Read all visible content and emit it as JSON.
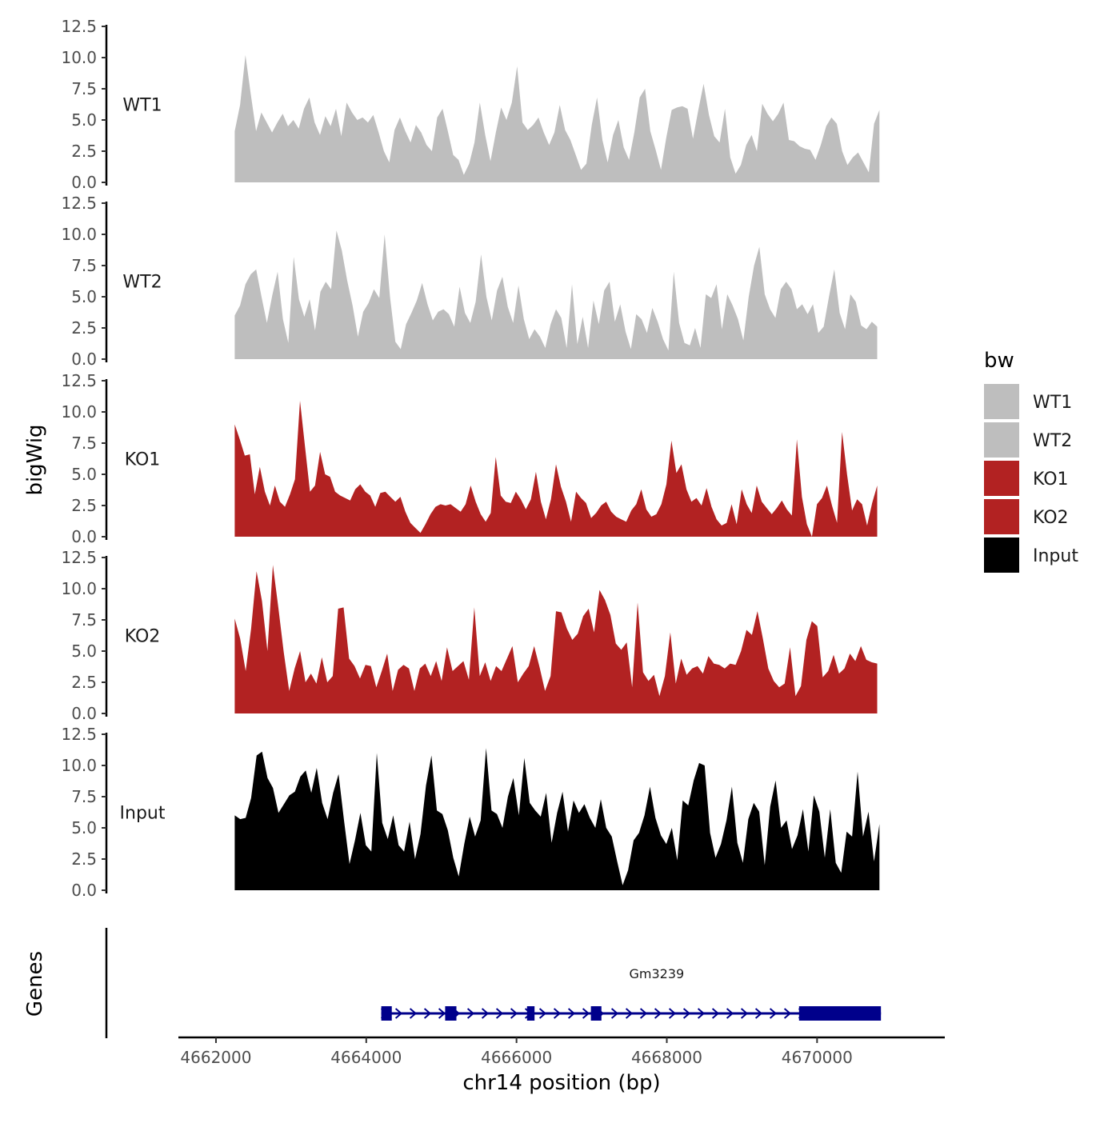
{
  "chart_data": {
    "type": "area",
    "y_axis_title": "bigWig",
    "x_axis_title": "chr14 position (bp)",
    "genes_axis_title": "Genes",
    "x_ticks": [
      4662000,
      4664000,
      4666000,
      4668000,
      4670000
    ],
    "x_tick_labels": [
      "4662000",
      "4664000",
      "4666000",
      "4668000",
      "4670000"
    ],
    "xlim": [
      4661500,
      4671700
    ],
    "ylim": [
      0,
      12.5
    ],
    "y_ticks": [
      0.0,
      2.5,
      5.0,
      7.5,
      10.0,
      12.5
    ],
    "y_tick_labels": [
      "0.0",
      "2.5",
      "5.0",
      "7.5",
      "10.0",
      "12.5"
    ],
    "legend": {
      "title": "bw",
      "position": "right",
      "entries": [
        {
          "label": "WT1",
          "color": "#bebebe"
        },
        {
          "label": "WT2",
          "color": "#bebebe"
        },
        {
          "label": "KO1",
          "color": "#b22222"
        },
        {
          "label": "KO2",
          "color": "#b22222"
        },
        {
          "label": "Input",
          "color": "#000000"
        }
      ]
    },
    "tracks": [
      {
        "name": "WT1",
        "color": "#bebebe",
        "x_range": [
          4662250,
          4670830
        ],
        "values": [
          4.1,
          6.2,
          10.2,
          7.1,
          4.1,
          5.6,
          4.8,
          4.0,
          4.8,
          5.5,
          4.5,
          5.0,
          4.3,
          5.9,
          6.8,
          4.8,
          3.8,
          5.3,
          4.5,
          5.9,
          3.7,
          6.4,
          5.6,
          5.0,
          5.2,
          4.8,
          5.4,
          4.0,
          2.5,
          1.6,
          4.2,
          5.2,
          4.1,
          3.2,
          4.6,
          4.0,
          3.0,
          2.5,
          5.2,
          5.9,
          4.1,
          2.2,
          1.8,
          0.6,
          1.5,
          3.2,
          6.4,
          3.8,
          1.7,
          4.0,
          6.0,
          5.0,
          6.4,
          9.3,
          4.8,
          4.2,
          4.6,
          5.2,
          4.0,
          3.0,
          4.0,
          6.2,
          4.2,
          3.4,
          2.2,
          1.0,
          1.5,
          4.6,
          6.8,
          3.4,
          1.6,
          3.8,
          5.0,
          2.8,
          1.8,
          4.0,
          6.8,
          7.5,
          4.1,
          2.6,
          1.0,
          3.6,
          5.8,
          6.0,
          6.1,
          5.9,
          3.5,
          5.8,
          7.9,
          5.4,
          3.7,
          3.2,
          5.9,
          2.0,
          0.7,
          1.4,
          3.0,
          3.8,
          2.5,
          6.3,
          5.5,
          4.9,
          5.5,
          6.4,
          3.4,
          3.3,
          2.9,
          2.7,
          2.6,
          1.8,
          3.0,
          4.5,
          5.2,
          4.7,
          2.5,
          1.4,
          2.0,
          2.4,
          1.6,
          0.8,
          4.7,
          5.8
        ]
      },
      {
        "name": "WT2",
        "color": "#bebebe",
        "x_range": [
          4662250,
          4670800
        ],
        "values": [
          3.5,
          4.3,
          6.0,
          6.8,
          7.2,
          5.0,
          2.9,
          5.1,
          7.0,
          3.2,
          1.3,
          8.2,
          4.8,
          3.4,
          4.8,
          2.3,
          5.4,
          6.2,
          5.6,
          10.3,
          8.7,
          6.3,
          4.3,
          1.8,
          3.8,
          4.5,
          5.6,
          4.9,
          10.0,
          5.0,
          1.4,
          0.8,
          2.8,
          3.7,
          4.7,
          6.1,
          4.4,
          3.1,
          3.8,
          4.0,
          3.6,
          2.6,
          5.8,
          3.7,
          2.9,
          4.6,
          8.4,
          5.0,
          3.1,
          5.5,
          6.6,
          4.2,
          2.9,
          5.9,
          3.2,
          1.6,
          2.4,
          1.8,
          0.9,
          2.8,
          4.0,
          3.3,
          0.9,
          6.0,
          1.2,
          3.4,
          0.9,
          4.7,
          2.8,
          5.5,
          6.2,
          3.0,
          4.4,
          2.2,
          0.8,
          3.6,
          3.2,
          2.1,
          4.1,
          3.0,
          1.6,
          0.7,
          7.0,
          2.9,
          1.3,
          1.1,
          2.5,
          0.9,
          5.2,
          4.9,
          6.0,
          2.4,
          5.2,
          4.3,
          3.2,
          1.5,
          5.0,
          7.5,
          9.0,
          5.2,
          4.0,
          3.3,
          5.6,
          6.2,
          5.6,
          4.0,
          4.4,
          3.6,
          4.4,
          2.1,
          2.6,
          5.0,
          7.2,
          3.7,
          2.4,
          5.2,
          4.6,
          2.7,
          2.4,
          3.0,
          2.6
        ]
      },
      {
        "name": "KO1",
        "color": "#b22222",
        "x_range": [
          4662250,
          4670800
        ],
        "values": [
          9.0,
          7.8,
          6.5,
          6.6,
          3.4,
          5.6,
          3.6,
          2.5,
          4.1,
          2.8,
          2.4,
          3.4,
          4.6,
          10.9,
          7.2,
          3.6,
          4.1,
          6.8,
          5.0,
          4.8,
          3.6,
          3.3,
          3.1,
          2.9,
          3.8,
          4.2,
          3.6,
          3.3,
          2.4,
          3.5,
          3.6,
          3.2,
          2.8,
          3.2,
          2.0,
          1.1,
          0.7,
          0.3,
          1.0,
          1.8,
          2.4,
          2.6,
          2.5,
          2.6,
          2.3,
          2.0,
          2.6,
          4.1,
          2.8,
          1.8,
          1.2,
          1.9,
          6.4,
          3.3,
          2.8,
          2.7,
          3.6,
          3.0,
          2.2,
          3.0,
          5.2,
          2.8,
          1.4,
          3.0,
          5.8,
          4.0,
          2.8,
          1.2,
          3.6,
          3.1,
          2.7,
          1.5,
          1.9,
          2.5,
          2.8,
          2.0,
          1.6,
          1.4,
          1.2,
          2.1,
          2.6,
          3.8,
          2.2,
          1.6,
          1.8,
          2.6,
          4.2,
          7.7,
          5.1,
          5.8,
          3.8,
          2.8,
          3.1,
          2.5,
          3.9,
          2.4,
          1.4,
          0.9,
          1.1,
          2.6,
          1.0,
          3.8,
          2.6,
          1.9,
          4.1,
          2.8,
          2.3,
          1.8,
          2.3,
          2.9,
          2.2,
          1.7,
          7.8,
          3.2,
          1.0,
          0.0,
          2.6,
          3.1,
          4.1,
          2.5,
          1.1,
          8.4,
          5.0,
          2.1,
          3.0,
          2.6,
          0.9,
          2.7,
          4.1
        ]
      },
      {
        "name": "KO2",
        "color": "#b22222",
        "x_range": [
          4662250,
          4670800
        ],
        "values": [
          7.6,
          6.0,
          3.4,
          6.8,
          11.4,
          9.0,
          5.0,
          11.9,
          8.5,
          4.9,
          1.8,
          3.6,
          5.0,
          2.5,
          3.2,
          2.4,
          4.5,
          2.5,
          3.0,
          8.4,
          8.5,
          4.4,
          3.8,
          2.8,
          3.9,
          3.8,
          2.1,
          3.4,
          4.8,
          1.8,
          3.5,
          3.9,
          3.6,
          1.8,
          3.6,
          4.0,
          3.0,
          4.2,
          2.6,
          5.3,
          3.4,
          3.8,
          4.2,
          2.7,
          8.5,
          3.0,
          4.1,
          2.6,
          3.8,
          3.4,
          4.4,
          5.4,
          2.5,
          3.2,
          3.8,
          5.4,
          3.7,
          1.8,
          3.0,
          8.2,
          8.1,
          6.8,
          5.9,
          6.4,
          7.8,
          8.4,
          6.5,
          9.9,
          9.1,
          7.9,
          5.6,
          5.1,
          5.7,
          2.1,
          8.9,
          3.3,
          2.6,
          3.1,
          1.4,
          3.0,
          6.5,
          2.4,
          4.4,
          3.1,
          3.6,
          3.8,
          3.2,
          4.6,
          4.0,
          3.9,
          3.6,
          4.0,
          3.9,
          5.0,
          6.7,
          6.3,
          8.2,
          6.0,
          3.6,
          2.6,
          2.1,
          2.4,
          5.3,
          1.4,
          2.2,
          5.9,
          7.4,
          7.0,
          2.9,
          3.4,
          4.7,
          3.2,
          3.6,
          4.8,
          4.2,
          5.4,
          4.3,
          4.1,
          4.0
        ]
      },
      {
        "name": "Input",
        "color": "#000000",
        "x_range": [
          4662250,
          4670830
        ],
        "values": [
          6.0,
          5.7,
          5.8,
          7.4,
          10.8,
          11.1,
          9.0,
          8.2,
          6.2,
          6.9,
          7.6,
          7.9,
          9.1,
          9.6,
          7.8,
          9.8,
          7.0,
          5.7,
          7.8,
          9.3,
          5.6,
          2.1,
          4.0,
          6.2,
          3.6,
          3.1,
          11.0,
          5.4,
          4.1,
          6.0,
          3.6,
          3.1,
          5.5,
          2.5,
          4.5,
          8.4,
          10.8,
          6.4,
          6.1,
          4.8,
          2.6,
          1.1,
          3.7,
          5.9,
          4.3,
          5.6,
          11.4,
          6.4,
          6.1,
          5.0,
          7.5,
          9.0,
          6.0,
          10.6,
          7.0,
          6.4,
          5.9,
          7.8,
          3.8,
          6.2,
          7.9,
          4.7,
          7.2,
          6.2,
          6.9,
          5.8,
          5.0,
          7.3,
          5.0,
          4.3,
          2.3,
          0.4,
          1.6,
          4.0,
          4.6,
          6.0,
          8.3,
          5.8,
          4.4,
          3.7,
          5.0,
          2.4,
          7.2,
          6.8,
          8.8,
          10.2,
          10.0,
          4.6,
          2.6,
          3.7,
          5.6,
          8.3,
          3.8,
          2.2,
          5.7,
          7.0,
          6.3,
          2.0,
          6.7,
          8.8,
          5.0,
          5.6,
          3.3,
          4.4,
          6.5,
          3.1,
          7.6,
          6.3,
          2.6,
          6.5,
          2.2,
          1.4,
          4.7,
          4.3,
          9.5,
          4.3,
          6.3,
          2.3,
          5.3
        ]
      }
    ],
    "genes": [
      {
        "name": "Gm3239",
        "color": "#00008b",
        "strand": "+",
        "start": 4664200,
        "end": 4670850,
        "exons": [
          [
            4664200,
            4664340
          ],
          [
            4665050,
            4665200
          ],
          [
            4666140,
            4666240
          ],
          [
            4666990,
            4667130
          ],
          [
            4669760,
            4670850
          ]
        ]
      }
    ]
  }
}
